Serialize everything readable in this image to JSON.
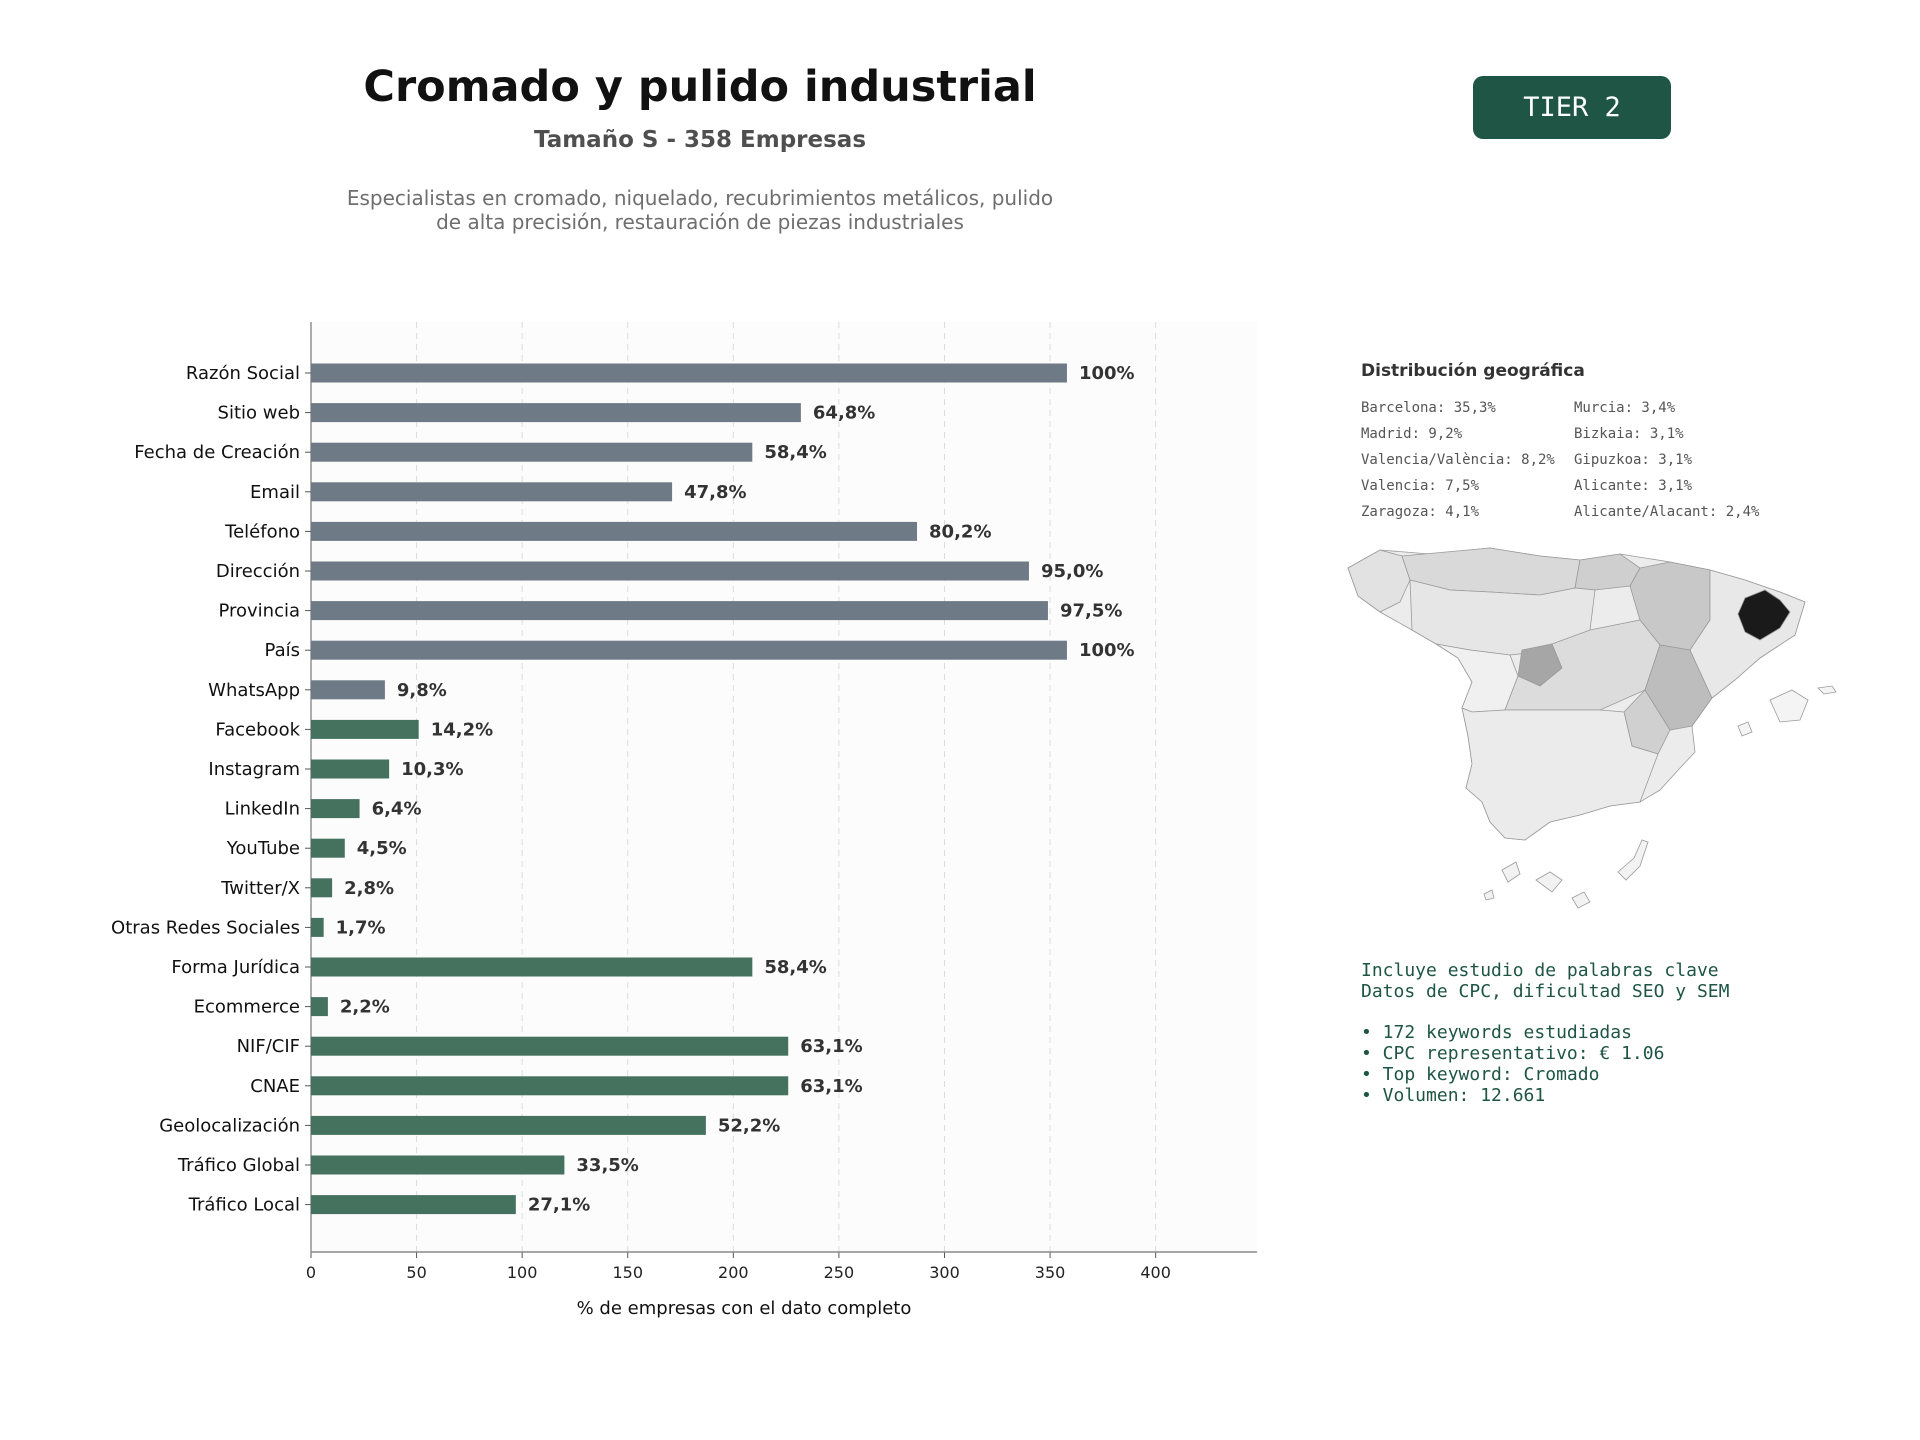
{
  "header": {
    "title": "Cromado y pulido industrial",
    "subtitle": "Tamaño S - 358 Empresas",
    "description_line1": "Especialistas en cromado, niquelado, recubrimientos metálicos, pulido",
    "description_line2": "de alta precisión, restauración de piezas industriales",
    "tier": "TIER 2"
  },
  "chart_data": {
    "type": "bar",
    "orientation": "horizontal",
    "xlabel": "% de empresas con el dato completo",
    "xlim": [
      0,
      448
    ],
    "xticks": [
      0,
      50,
      100,
      150,
      200,
      250,
      300,
      350,
      400
    ],
    "grid": "vertical dashed",
    "colors": {
      "contact": "#6e7a85",
      "digital": "#44725f"
    },
    "categories": [
      "Razón Social",
      "Sitio web",
      "Fecha de Creación",
      "Email",
      "Teléfono",
      "Dirección",
      "Provincia",
      "País",
      "WhatsApp",
      "Facebook",
      "Instagram",
      "LinkedIn",
      "YouTube",
      "Twitter/X",
      "Otras Redes Sociales",
      "Forma Jurídica",
      "Ecommerce",
      "NIF/CIF",
      "CNAE",
      "Geolocalización",
      "Tráfico Global",
      "Tráfico Local"
    ],
    "values": [
      358,
      232,
      209,
      171,
      287,
      340,
      349,
      358,
      35,
      51,
      37,
      23,
      16,
      10,
      6,
      209,
      8,
      226,
      226,
      187,
      120,
      97
    ],
    "labels": [
      "100%",
      "64,8%",
      "58,4%",
      "47,8%",
      "80,2%",
      "95,0%",
      "97,5%",
      "100%",
      "9,8%",
      "14,2%",
      "10,3%",
      "6,4%",
      "4,5%",
      "2,8%",
      "1,7%",
      "58,4%",
      "2,2%",
      "63,1%",
      "63,1%",
      "52,2%",
      "33,5%",
      "27,1%"
    ],
    "groups": [
      "contact",
      "contact",
      "contact",
      "contact",
      "contact",
      "contact",
      "contact",
      "contact",
      "contact",
      "digital",
      "digital",
      "digital",
      "digital",
      "digital",
      "digital",
      "digital",
      "digital",
      "digital",
      "digital",
      "digital",
      "digital",
      "digital"
    ]
  },
  "geo": {
    "title": "Distribución geográfica",
    "left": [
      "Barcelona: 35,3%",
      "Madrid: 9,2%",
      "Valencia/València: 8,2%",
      "Valencia: 7,5%",
      "Zaragoza: 4,1%"
    ],
    "right": [
      "Murcia: 3,4%",
      "Bizkaia: 3,1%",
      "Gipuzkoa: 3,1%",
      "Alicante: 3,1%",
      "Alicante/Alacant: 2,4%"
    ]
  },
  "keywords": {
    "line1": "Incluye estudio de palabras clave",
    "line2": "Datos de CPC, dificultad SEO y SEM",
    "b1": "• 172 keywords estudiadas",
    "b2": "• CPC representativo: € 1.06",
    "b3": "• Top keyword: Cromado",
    "b4": "• Volumen: 12.661"
  }
}
